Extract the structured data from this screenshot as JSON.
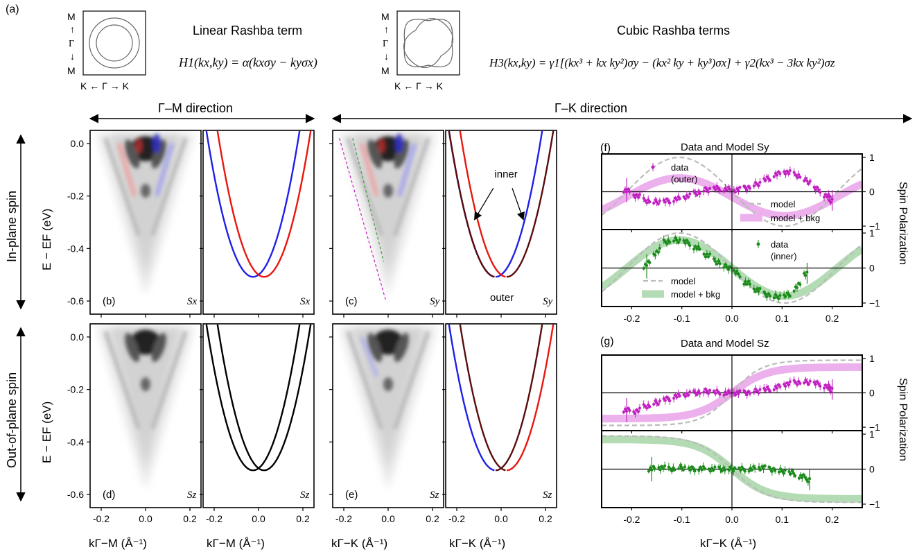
{
  "panel_a": {
    "tag": "(a)",
    "linear_title": "Linear Rashba term",
    "linear_eq": "H1(kx,ky) = α(kxσy − kyσx)",
    "cubic_title": "Cubic Rashba terms",
    "cubic_eq": "H3(kx,ky) = γ1[(kx³ + kx ky²)σy − (kx² ky + ky³)σx] + γ2(kx³ − 3kx ky²)σz",
    "inset_labels": {
      "top": "M",
      "mid": "Γ",
      "bot": "M",
      "bottom_row": "K ← Γ → K"
    }
  },
  "directions": {
    "gm": "Γ–M direction",
    "gk": "Γ–K direction"
  },
  "row_labels": {
    "inplane": "In-plane spin",
    "outplane": "Out-of-plane spin"
  },
  "energy_axis": {
    "label": "E − EF (eV)",
    "ticks": [
      "0.0",
      "-0.2",
      "-0.4",
      "-0.6"
    ],
    "values": [
      0,
      -0.2,
      -0.4,
      -0.6
    ],
    "range": [
      -0.65,
      0.05
    ]
  },
  "k_axis": {
    "ticks": [
      "-0.2",
      "0.0",
      "0.2"
    ],
    "values": [
      -0.2,
      0,
      0.2
    ],
    "range": [
      -0.25,
      0.25
    ]
  },
  "k_labels": {
    "gm": "kΓ−M (Å⁻¹)",
    "gk": "kΓ−K (Å⁻¹)"
  },
  "panels": [
    {
      "tag": "(b)",
      "spin": "Sx"
    },
    {
      "tag": "",
      "spin": "Sx"
    },
    {
      "tag": "(c)",
      "spin": "Sy"
    },
    {
      "tag": "",
      "spin": "Sy"
    },
    {
      "tag": "(d)",
      "spin": "Sz"
    },
    {
      "tag": "",
      "spin": "Sz"
    },
    {
      "tag": "(e)",
      "spin": "Sz"
    },
    {
      "tag": "",
      "spin": "Sz"
    }
  ],
  "annotations": {
    "inner": "inner",
    "outer": "outer"
  },
  "panel_f": {
    "tag": "(f)",
    "title": "Data and Model Sy",
    "legend_top": [
      "data",
      "(outer)",
      "model",
      "model + bkg"
    ],
    "legend_bottom": [
      "data",
      "(inner)",
      "model",
      "model + bkg"
    ]
  },
  "panel_g": {
    "tag": "(g)",
    "title": "Data and Model Sz"
  },
  "spin_pol_label": "Spin Polarization",
  "pol_ticks": [
    "1",
    "0",
    "−1"
  ],
  "right_k_ticks": [
    "-0.2",
    "-0.1",
    "0.0",
    "0.1",
    "0.2"
  ],
  "right_k_label": "kΓ−K (Å⁻¹)",
  "colors": {
    "red": "#e8160f",
    "blue": "#1f1fe8",
    "black": "#000000",
    "darkred": "#5a0c0c",
    "magenta": "#c020c0",
    "magenta_light": "#ecb0ec",
    "green": "#1a8a1a",
    "green_light": "#b4dcb4",
    "gray": "#bbbbbb"
  },
  "chart_data": {
    "type": "line",
    "model_bands": {
      "E0": -0.508,
      "k_shift": 0.025,
      "curvature": 12.6
    },
    "pol_range": [
      -1.1,
      1.1
    ],
    "k_range": [
      -0.26,
      0.26
    ],
    "spin_pol_f_outer": {
      "k": [
        -0.21,
        -0.19,
        -0.17,
        -0.15,
        -0.13,
        -0.11,
        -0.09,
        -0.07,
        -0.05,
        -0.03,
        -0.01,
        0.01,
        0.03,
        0.05,
        0.07,
        0.09,
        0.11,
        0.13,
        0.15,
        0.17,
        0.19,
        0.2
      ],
      "p": [
        0.05,
        -0.1,
        -0.25,
        -0.3,
        -0.28,
        -0.22,
        -0.15,
        -0.05,
        0.05,
        0.1,
        0.08,
        0.05,
        0.1,
        0.2,
        0.35,
        0.5,
        0.58,
        0.5,
        0.35,
        0.1,
        -0.1,
        -0.25
      ]
    },
    "spin_pol_f_inner": {
      "k": [
        -0.17,
        -0.15,
        -0.13,
        -0.11,
        -0.09,
        -0.07,
        -0.05,
        -0.03,
        -0.01,
        0.01,
        0.03,
        0.05,
        0.07,
        0.09,
        0.11,
        0.13,
        0.15
      ],
      "p": [
        0.05,
        0.4,
        0.75,
        0.8,
        0.75,
        0.6,
        0.4,
        0.2,
        0.05,
        -0.1,
        -0.4,
        -0.6,
        -0.75,
        -0.82,
        -0.8,
        -0.6,
        -0.15
      ]
    },
    "spin_pol_g_outer": {
      "k": [
        -0.21,
        -0.19,
        -0.17,
        -0.15,
        -0.13,
        -0.11,
        -0.09,
        -0.07,
        -0.05,
        -0.03,
        -0.01,
        0.01,
        0.03,
        0.05,
        0.07,
        0.09,
        0.11,
        0.13,
        0.15,
        0.17,
        0.19,
        0.2
      ],
      "p": [
        -0.5,
        -0.55,
        -0.4,
        -0.3,
        -0.2,
        -0.1,
        -0.05,
        0.0,
        0.05,
        0.02,
        0.0,
        0.0,
        0.0,
        0.05,
        0.1,
        0.15,
        0.25,
        0.3,
        0.32,
        0.28,
        0.2,
        0.1
      ]
    },
    "spin_pol_g_inner": {
      "k": [
        -0.16,
        -0.14,
        -0.12,
        -0.1,
        -0.08,
        -0.06,
        -0.04,
        -0.02,
        0.0,
        0.02,
        0.04,
        0.06,
        0.08,
        0.1,
        0.12,
        0.14,
        0.155
      ],
      "p": [
        0.0,
        0.05,
        0.0,
        0.05,
        0.0,
        0.02,
        0.0,
        0.0,
        0.0,
        0.0,
        0.0,
        0.05,
        0.0,
        -0.05,
        -0.1,
        -0.2,
        -0.3
      ]
    }
  }
}
